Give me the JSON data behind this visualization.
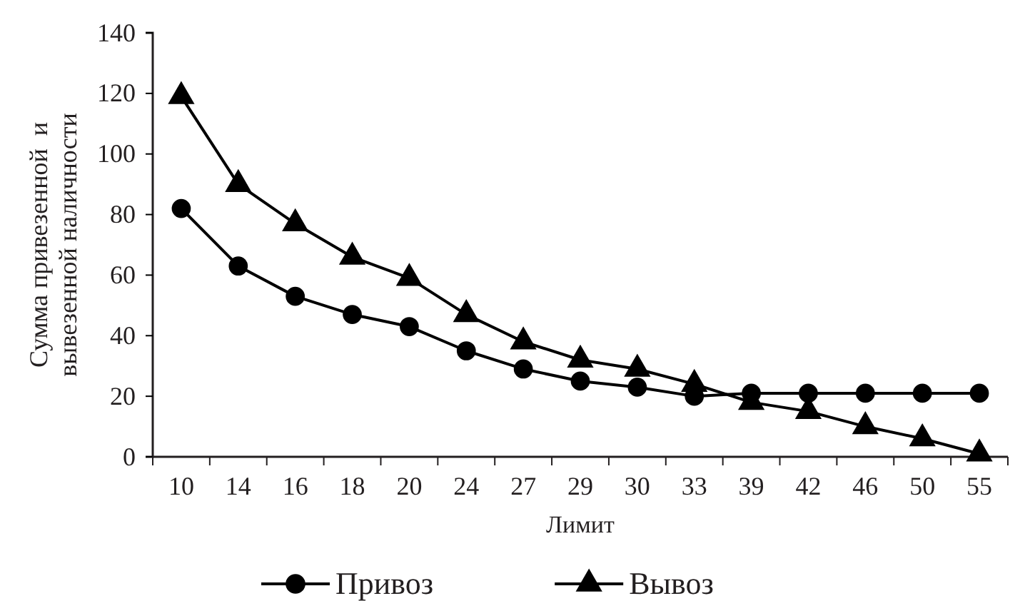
{
  "chart_data": {
    "type": "line",
    "xlabel": "Лимит",
    "ylabel": "Сумма привезенной  и\nвывезенной наличности",
    "categories": [
      "10",
      "14",
      "16",
      "18",
      "20",
      "24",
      "27",
      "29",
      "30",
      "33",
      "39",
      "42",
      "46",
      "50",
      "55"
    ],
    "ylim": [
      0,
      140
    ],
    "yticks": [
      0,
      20,
      40,
      60,
      80,
      100,
      120,
      140
    ],
    "grid": false,
    "legend": "bottom",
    "line_style": "solid",
    "series": [
      {
        "name": "Привоз",
        "color": "#000000",
        "marker": "circle",
        "values": [
          82,
          63,
          53,
          47,
          43,
          35,
          29,
          25,
          23,
          20,
          21,
          21,
          21,
          21,
          21
        ]
      },
      {
        "name": "Вывоз",
        "color": "#000000",
        "marker": "triangle",
        "values": [
          119,
          90,
          77,
          66,
          59,
          47,
          38,
          32,
          29,
          24,
          18,
          15,
          10,
          6,
          1
        ]
      }
    ]
  }
}
